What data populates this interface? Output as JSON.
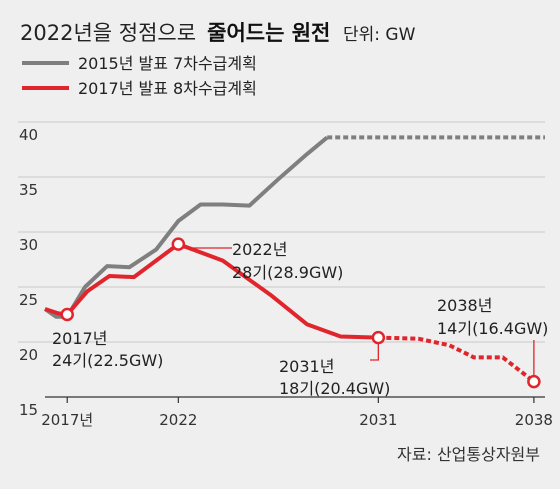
{
  "title": {
    "light": "2022년을 정점으로",
    "bold": "줄어드는 원전",
    "unit": "단위: GW"
  },
  "legend": [
    {
      "label": "2015년 발표 7차수급계획",
      "color": "#7f7f7f"
    },
    {
      "label": "2017년 발표 8차수급계획",
      "color": "#e0262c"
    }
  ],
  "source": "자료: 산업통상자원부",
  "annotations": {
    "a2017": [
      "2017년",
      "24기(22.5GW)"
    ],
    "a2022": [
      "2022년",
      "28기(28.9GW)"
    ],
    "a2031": [
      "2031년",
      "18기(20.4GW)"
    ],
    "a2038": [
      "2038년",
      "14기(16.4GW)"
    ]
  },
  "chart_data": {
    "type": "line",
    "y_ticks": [
      15,
      20,
      25,
      30,
      35,
      40
    ],
    "x_ticks": [
      {
        "value": 2017,
        "label": "2017년"
      },
      {
        "value": 2022,
        "label": "2022"
      },
      {
        "value": 2031,
        "label": "2031"
      },
      {
        "value": 2038,
        "label": "2038"
      }
    ],
    "ylim": [
      15,
      40
    ],
    "xlim": [
      2016,
      2038.5
    ],
    "series": [
      {
        "name": "2015년 발표 7차수급계획",
        "color": "#7f7f7f",
        "points": [
          [
            2016.0,
            23.0
          ],
          [
            2016.5,
            22.3
          ],
          [
            2017.0,
            22.3
          ],
          [
            2017.8,
            25.0
          ],
          [
            2018.8,
            26.9
          ],
          [
            2019.8,
            26.8
          ],
          [
            2021.0,
            28.4
          ],
          [
            2022.0,
            31.0
          ],
          [
            2023.0,
            32.5
          ],
          [
            2024.0,
            32.5
          ],
          [
            2025.2,
            32.4
          ],
          [
            2026.5,
            34.8
          ],
          [
            2027.8,
            37.1
          ],
          [
            2028.7,
            38.6
          ]
        ],
        "dashed_points": [
          [
            2028.7,
            38.6
          ],
          [
            2038.5,
            38.6
          ]
        ]
      },
      {
        "name": "2017년 발표 8차수급계획",
        "color": "#e0262c",
        "points": [
          [
            2016.0,
            23.0
          ],
          [
            2016.6,
            22.6
          ],
          [
            2017.0,
            22.5
          ],
          [
            2017.9,
            24.6
          ],
          [
            2018.9,
            26.0
          ],
          [
            2020.0,
            25.9
          ],
          [
            2022.0,
            28.9
          ],
          [
            2024.0,
            27.4
          ],
          [
            2026.2,
            24.2
          ],
          [
            2027.8,
            21.6
          ],
          [
            2029.3,
            20.5
          ],
          [
            2031.0,
            20.4
          ]
        ],
        "dashed_points": [
          [
            2031.0,
            20.4
          ],
          [
            2032.8,
            20.3
          ],
          [
            2034.2,
            19.7
          ],
          [
            2035.3,
            18.6
          ],
          [
            2036.6,
            18.6
          ],
          [
            2038.0,
            16.4
          ]
        ],
        "markers": [
          [
            2017.0,
            22.5
          ],
          [
            2022.0,
            28.9
          ],
          [
            2031.0,
            20.4
          ],
          [
            2038.0,
            16.4
          ]
        ]
      }
    ]
  }
}
